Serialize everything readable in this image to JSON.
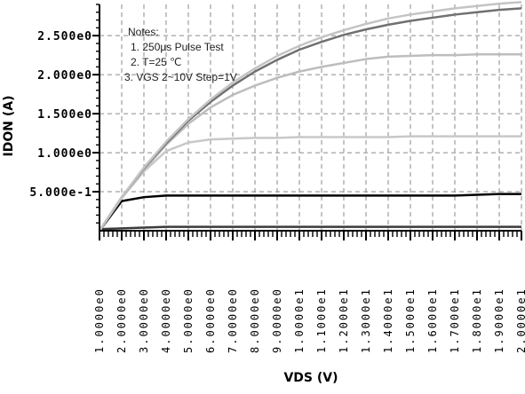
{
  "chart_data": {
    "type": "line",
    "xlabel": "VDS (V)",
    "ylabel": "IDON (A)",
    "xlim": [
      1,
      20
    ],
    "ylim": [
      0,
      2.9
    ],
    "grid": true,
    "x_ticks": [
      "1.0000e0",
      "2.0000e0",
      "3.0000e0",
      "4.0000e0",
      "5.0000e0",
      "6.0000e0",
      "7.0000e0",
      "8.0000e0",
      "9.0000e0",
      "1.0000e1",
      "1.1000e1",
      "1.2000e1",
      "1.3000e1",
      "1.4000e1",
      "1.5000e1",
      "1.6000e1",
      "1.7000e1",
      "1.8000e1",
      "1.9000e1",
      "2.0000e1"
    ],
    "y_ticks": [
      {
        "label": "5.000e-1",
        "value": 0.5
      },
      {
        "label": "1.000e0",
        "value": 1.0
      },
      {
        "label": "1.500e0",
        "value": 1.5
      },
      {
        "label": "2.000e0",
        "value": 2.0
      },
      {
        "label": "2.500e0",
        "value": 2.5
      }
    ],
    "notes": [
      "Notes:",
      "1. 250µs   Pulse Test",
      "2. T=25 ℃",
      "3. VGS  2~10V   Step=1V"
    ],
    "x": [
      1,
      2,
      3,
      4,
      5,
      6,
      7,
      8,
      9,
      10,
      11,
      12,
      13,
      14,
      15,
      16,
      17,
      18,
      19,
      20
    ],
    "series": [
      {
        "color": "#3a3a3a",
        "values": [
          0.02,
          0.03,
          0.04,
          0.05,
          0.05,
          0.05,
          0.05,
          0.05,
          0.05,
          0.05,
          0.05,
          0.05,
          0.05,
          0.05,
          0.05,
          0.05,
          0.05,
          0.05,
          0.05,
          0.05
        ]
      },
      {
        "color": "#000000",
        "values": [
          0.0,
          0.38,
          0.43,
          0.45,
          0.45,
          0.45,
          0.45,
          0.45,
          0.45,
          0.45,
          0.45,
          0.45,
          0.45,
          0.45,
          0.45,
          0.45,
          0.45,
          0.46,
          0.47,
          0.47
        ]
      },
      {
        "color": "#c8c8c8",
        "values": [
          0.0,
          0.42,
          0.76,
          1.02,
          1.13,
          1.17,
          1.18,
          1.19,
          1.19,
          1.2,
          1.2,
          1.2,
          1.2,
          1.2,
          1.21,
          1.21,
          1.21,
          1.21,
          1.21,
          1.21
        ]
      },
      {
        "color": "#bdbdbd",
        "values": [
          0.0,
          0.42,
          0.78,
          1.1,
          1.37,
          1.58,
          1.74,
          1.86,
          1.96,
          2.04,
          2.1,
          2.15,
          2.2,
          2.23,
          2.24,
          2.25,
          2.25,
          2.26,
          2.26,
          2.26
        ]
      },
      {
        "color": "#707070",
        "values": [
          0.0,
          0.43,
          0.8,
          1.12,
          1.41,
          1.65,
          1.86,
          2.04,
          2.19,
          2.32,
          2.42,
          2.51,
          2.58,
          2.64,
          2.69,
          2.73,
          2.77,
          2.8,
          2.83,
          2.85
        ]
      },
      {
        "color": "#c4c4c4",
        "values": [
          0.0,
          0.43,
          0.81,
          1.14,
          1.43,
          1.68,
          1.9,
          2.08,
          2.24,
          2.37,
          2.48,
          2.57,
          2.65,
          2.72,
          2.77,
          2.81,
          2.85,
          2.88,
          2.91,
          2.93
        ]
      }
    ]
  }
}
